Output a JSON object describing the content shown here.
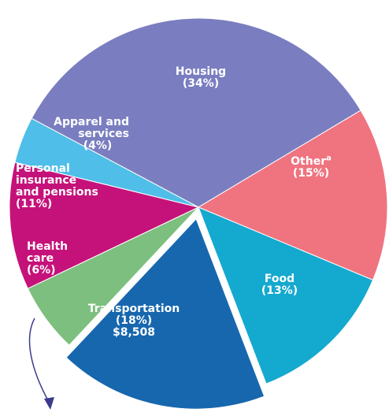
{
  "chart_data": {
    "type": "pie",
    "categories": [
      "Housing",
      "Other",
      "Food",
      "Transportation",
      "Health\ncare",
      "Personal\ninsurance\nand pensions",
      "Apparel and\nservices"
    ],
    "values": [
      34,
      15,
      13,
      18,
      6,
      11,
      4
    ],
    "value_labels": [
      "(34%)",
      "(15%)",
      "(13%)",
      "(18%)",
      "(6%)",
      "(11%)",
      "(4%)"
    ],
    "colors": [
      "#7a7ec0",
      "#ef7480",
      "#14a9cf",
      "#1767ae",
      "#7dbf7e",
      "#c5127a",
      "#4fbee8"
    ],
    "exploded": "Transportation",
    "footnote_mark": "a",
    "annotation": "$8,508"
  }
}
